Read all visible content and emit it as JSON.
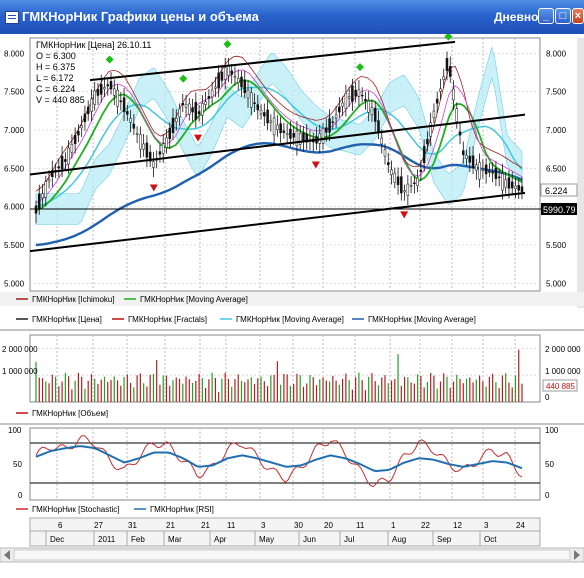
{
  "window": {
    "title": "ГМКНорНик Графики цены и объема",
    "mode": "Дневной",
    "controls": [
      "_",
      "□",
      "×"
    ]
  },
  "price_panel": {
    "info": {
      "header": "ГМКНорНик [Цена] 26.10.11",
      "open": "O = 6.300",
      "high": "H = 6.375",
      "low": "L = 6.172",
      "close": "C = 6.224",
      "volume": "V = 440 885"
    },
    "y_ticks": [
      "8.000",
      "7.500",
      "7.000",
      "6.500",
      "6.000",
      "5.500",
      "5.000"
    ],
    "last_price_label": "6.224",
    "cursor_price_label": "5990.79",
    "legend": [
      {
        "label": "ГМКНорНик [Ichimoku]",
        "color": "#a02020"
      },
      {
        "label": "ГМКНорНик [Moving Average]",
        "color": "#20b020"
      },
      {
        "label": "ГМКНорНик [Цена]",
        "color": "#202020"
      },
      {
        "label": "ГМКНорНик [Fractals]",
        "color": "#c01010"
      },
      {
        "label": "ГМКНорНик [Moving Average]",
        "color": "#40c8e0"
      },
      {
        "label": "ГМКНорНик [Moving Average]",
        "color": "#2060b0"
      }
    ]
  },
  "volume_panel": {
    "left_ticks": [
      "2 000 000",
      "1 000 000"
    ],
    "right_ticks": [
      "2 000 000",
      "1 000 000",
      "0"
    ],
    "last_volume_label": "440 885",
    "legend": [
      {
        "label": "ГМКНорНик [Объем]",
        "color": "#c01010"
      }
    ]
  },
  "oscillator_panel": {
    "ticks": [
      "100",
      "50",
      "0"
    ],
    "right_ticks": [
      "100",
      "50",
      "0"
    ],
    "legend": [
      {
        "label": "ГМКНорНик [Stochastic]",
        "color": "#c03030"
      },
      {
        "label": "ГМКНорНик [RSI]",
        "color": "#2070b0"
      }
    ]
  },
  "time_axis": {
    "days": [
      "6",
      "27",
      "31",
      "21",
      "21",
      "11",
      "3",
      "30",
      "20",
      "11",
      "1",
      "22",
      "12",
      "3",
      "24"
    ],
    "months": [
      "Dec",
      "2011",
      "Feb",
      "Mar",
      "Apr",
      "May",
      "Jun",
      "Jul",
      "Aug",
      "Sep",
      "Oct"
    ]
  },
  "chart_data": [
    {
      "type": "candlestick",
      "title": "ГМКНорНик [Цена]",
      "last_bar": {
        "date": "26.10.11",
        "open": 6.3,
        "high": 6.375,
        "low": 6.172,
        "close": 6.224,
        "volume": 440885
      },
      "ylim": [
        4.9,
        8.2
      ],
      "x_range_months": "Dec 2010 – Oct 2011",
      "close_series": [
        5.95,
        6.4,
        6.6,
        7.0,
        7.45,
        7.6,
        7.3,
        6.9,
        6.55,
        6.9,
        7.35,
        7.2,
        7.5,
        7.8,
        7.6,
        7.3,
        7.1,
        6.95,
        6.9,
        6.85,
        7.05,
        7.4,
        7.5,
        7.2,
        6.5,
        6.2,
        6.35,
        7.2,
        7.9,
        6.7,
        6.5,
        6.45,
        6.3,
        6.22
      ],
      "y_ticks": [
        5.0,
        5.5,
        6.0,
        6.5,
        7.0,
        7.5,
        8.0
      ],
      "grid": true
    },
    {
      "type": "bar",
      "title": "ГМКНорНик [Объем]",
      "ylim": [
        0,
        2500000
      ],
      "last_value": 440885,
      "y_ticks": [
        0,
        1000000,
        2000000
      ]
    },
    {
      "type": "line",
      "title": "Oscillators",
      "series": [
        {
          "name": "ГМКНорНик [Stochastic]",
          "values": [
            62,
            75,
            70,
            85,
            80,
            55,
            40,
            60,
            80,
            75,
            55,
            35,
            45,
            70,
            80,
            60,
            40,
            30,
            45,
            70,
            85,
            65,
            40,
            20,
            30,
            60,
            80,
            70,
            50,
            40,
            55,
            70,
            60,
            35
          ]
        },
        {
          "name": "ГМКНорНик [RSI]",
          "values": [
            60,
            68,
            72,
            75,
            72,
            62,
            52,
            58,
            66,
            66,
            58,
            46,
            48,
            58,
            62,
            58,
            52,
            46,
            48,
            56,
            62,
            58,
            50,
            40,
            42,
            52,
            58,
            56,
            50,
            46,
            50,
            54,
            52,
            44
          ]
        }
      ],
      "ylim": [
        0,
        100
      ],
      "y_ticks": [
        0,
        50,
        100
      ],
      "reference_lines": [
        20,
        80
      ]
    }
  ]
}
